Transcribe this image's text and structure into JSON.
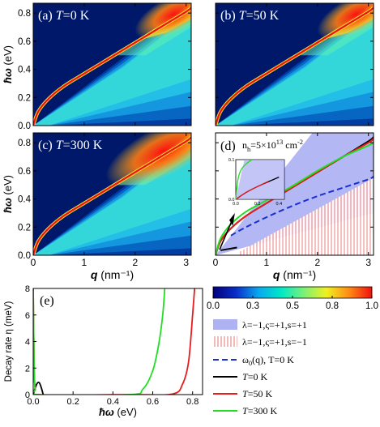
{
  "chart_data": [
    {
      "type": "heatmap",
      "label": "(a)",
      "T": "=0 K",
      "xlim": [
        0,
        3.1
      ],
      "ylim": [
        0,
        0.87
      ],
      "xticks": [
        "0",
        "1",
        "2",
        "3"
      ],
      "yticks": [
        "0.0",
        "0.2",
        "0.4",
        "0.6",
        "0.8"
      ],
      "ylabel": "ħω (eV)",
      "plasmon_curve": {
        "x": [
          0,
          0.1,
          0.3,
          0.6,
          1.0,
          1.5,
          2.0,
          2.5,
          3.0,
          3.1
        ],
        "y": [
          0,
          0.1,
          0.19,
          0.28,
          0.37,
          0.48,
          0.59,
          0.7,
          0.81,
          0.84
        ]
      },
      "continuum_edge": {
        "x": [
          1.75,
          3.1
        ],
        "y": [
          0.46,
          0.84
        ]
      }
    },
    {
      "type": "heatmap",
      "label": "(b)",
      "T": "=50 K",
      "xlim": [
        0,
        3.1
      ],
      "ylim": [
        0,
        0.87
      ],
      "plasmon_curve": {
        "x": [
          0,
          0.1,
          0.3,
          0.6,
          1.0,
          1.5,
          2.0,
          2.5,
          3.0,
          3.1
        ],
        "y": [
          0,
          0.1,
          0.19,
          0.28,
          0.37,
          0.48,
          0.59,
          0.7,
          0.81,
          0.84
        ]
      },
      "continuum_edge": {
        "x": [
          1.75,
          3.1
        ],
        "y": [
          0.46,
          0.84
        ]
      }
    },
    {
      "type": "heatmap",
      "label": "(c)",
      "T": "=300 K",
      "xlim": [
        0,
        3.1
      ],
      "ylim": [
        0,
        0.87
      ],
      "xticks": [
        "0",
        "1",
        "2",
        "3"
      ],
      "yticks": [
        "0.0",
        "0.2",
        "0.4",
        "0.6",
        "0.8"
      ],
      "xlabel": "q (nm⁻¹)",
      "ylabel": "ħω (eV)",
      "plasmon_curve": {
        "x": [
          0,
          0.1,
          0.3,
          0.6,
          1.0,
          1.5,
          2.0,
          2.5,
          3.0,
          3.1
        ],
        "y": [
          0,
          0.1,
          0.19,
          0.28,
          0.37,
          0.48,
          0.59,
          0.7,
          0.81,
          0.84
        ]
      },
      "continuum_edge": {
        "x": [
          1.75,
          3.1
        ],
        "y": [
          0.46,
          0.84
        ]
      }
    },
    {
      "type": "line",
      "label": "(d)",
      "annotation": "n",
      "annotation_sub": "h",
      "annotation_rest": "=5×10",
      "annotation_exp": "13",
      "annotation_unit": " cm",
      "annotation_unit_exp": "-2",
      "xlim": [
        0,
        3.1
      ],
      "ylim": [
        0,
        0.87
      ],
      "xticks": [
        "0",
        "1",
        "2",
        "3"
      ],
      "xlabel": "q (nm⁻¹)",
      "series": [
        {
          "x": [
            0,
            0.1,
            0.3,
            0.6,
            1.0,
            1.5,
            2.0,
            2.5,
            3.0,
            3.1
          ],
          "y": [
            0,
            0.1,
            0.19,
            0.28,
            0.37,
            0.48,
            0.59,
            0.7,
            0.81,
            0.84
          ],
          "color": "#000000"
        },
        {
          "x": [
            0,
            0.1,
            0.3,
            0.6,
            1.0,
            1.5,
            2.0,
            2.5,
            3.0,
            3.1
          ],
          "y": [
            0,
            0.1,
            0.19,
            0.28,
            0.37,
            0.48,
            0.59,
            0.7,
            0.8,
            0.83
          ],
          "color": "#e81c1c"
        },
        {
          "x": [
            0,
            0.1,
            0.3,
            0.6,
            1.0,
            1.5,
            2.0,
            2.5,
            3.0,
            3.1
          ],
          "y": [
            0,
            0.12,
            0.22,
            0.31,
            0.39,
            0.49,
            0.6,
            0.7,
            0.78,
            0.8
          ],
          "color": "#22dd22"
        },
        {
          "x": [
            0.3,
            0.6,
            1.0,
            1.5,
            2.0,
            2.5,
            3.0,
            3.1
          ],
          "y": [
            0.14,
            0.2,
            0.27,
            0.35,
            0.42,
            0.48,
            0.54,
            0.56
          ],
          "color": "#1a2fd0",
          "dashed": true
        }
      ],
      "regions": [
        {
          "legend": "λ=−1,ς=+1,s=+1",
          "color": "#9a9ff0",
          "polygon_x": [
            0,
            3.1,
            3.1,
            1.9,
            0
          ],
          "polygon_y": [
            0,
            0.3,
            0.87,
            0.87,
            0
          ]
        },
        {
          "legend": "λ=−1,ς=+1,s=−1",
          "color": "#e8a0a0",
          "polygon_x": [
            0.45,
            3.1,
            3.1,
            0.45
          ],
          "polygon_y": [
            0.0,
            0.0,
            0.55,
            0.02
          ]
        }
      ],
      "inset": {
        "xlim": [
          0,
          0.45
        ],
        "ylim": [
          0,
          0.1
        ],
        "xticks": [
          "0.0",
          "0.2",
          "0.4"
        ],
        "yticks": [
          "0.0",
          "0.1"
        ],
        "series": [
          {
            "x": [
              0,
              0.1,
              0.2,
              0.3,
              0.4
            ],
            "y": [
              0,
              0.018,
              0.032,
              0.044,
              0.056
            ],
            "color": "#000000"
          },
          {
            "x": [
              0,
              0.1,
              0.2,
              0.3
            ],
            "y": [
              0,
              0.018,
              0.032,
              0.045
            ],
            "color": "#e81c1c"
          },
          {
            "x": [
              0,
              0.02,
              0.05,
              0.1,
              0.15
            ],
            "y": [
              0,
              0.05,
              0.075,
              0.09,
              0.1
            ],
            "color": "#22dd22"
          }
        ]
      }
    },
    {
      "type": "line",
      "label": "(e)",
      "xlabel": "ħω (eV)",
      "ylabel": "Decay rate η (meV)",
      "xlim": [
        0,
        0.85
      ],
      "ylim": [
        0,
        8
      ],
      "xticks": [
        "0.0",
        "0.2",
        "0.4",
        "0.6",
        "0.8"
      ],
      "yticks": [
        "0",
        "2",
        "4",
        "6",
        "8"
      ],
      "series": [
        {
          "name": "T=0 K",
          "x": [
            0.0,
            0.01,
            0.02,
            0.03,
            0.04,
            0.05
          ],
          "y": [
            0.0,
            0.5,
            0.85,
            0.9,
            0.55,
            0.0
          ],
          "color": "#000000"
        },
        {
          "name": "T=50 K",
          "x": [
            0.0,
            0.005,
            0.01,
            0.02,
            0.5,
            0.7,
            0.75,
            0.78,
            0.8,
            0.81
          ],
          "y": [
            8,
            2.0,
            0.4,
            0.0,
            0.0,
            0.05,
            0.8,
            2.5,
            6.0,
            8
          ],
          "color": "#e81c1c"
        },
        {
          "name": "T=300 K",
          "x": [
            0.0,
            0.005,
            0.01,
            0.02,
            0.48,
            0.55,
            0.6,
            0.63,
            0.65,
            0.66
          ],
          "y": [
            8,
            2.0,
            0.4,
            0.0,
            0.0,
            0.4,
            1.8,
            3.8,
            6.0,
            8
          ],
          "color": "#22dd22"
        }
      ]
    }
  ],
  "colorbar": {
    "ticks": [
      "0.0",
      "0.3",
      "0.5",
      "0.8",
      "1.0"
    ],
    "colors": [
      "#00007a",
      "#0a2cc8",
      "#0aa8ee",
      "#00e8c8",
      "#7cf078",
      "#f0f020",
      "#ff8a14",
      "#f01010"
    ]
  },
  "legend": [
    {
      "label": "λ=−1,ς=+1,s=+1",
      "kind": "patch",
      "color": "#9a9ff0"
    },
    {
      "label": "λ=−1,ς=+1,s=−1",
      "kind": "hatch",
      "color": "#e8a0a0"
    },
    {
      "label": "ω",
      "sub": "0",
      "rest": "(q), T=0 K",
      "kind": "dash",
      "color": "#1a2fd0"
    },
    {
      "label": "T=0 K",
      "kind": "line",
      "color": "#000000"
    },
    {
      "label": "T=50 K",
      "kind": "line",
      "color": "#e81c1c"
    },
    {
      "label": "T=300 K",
      "kind": "line",
      "color": "#22dd22"
    }
  ]
}
